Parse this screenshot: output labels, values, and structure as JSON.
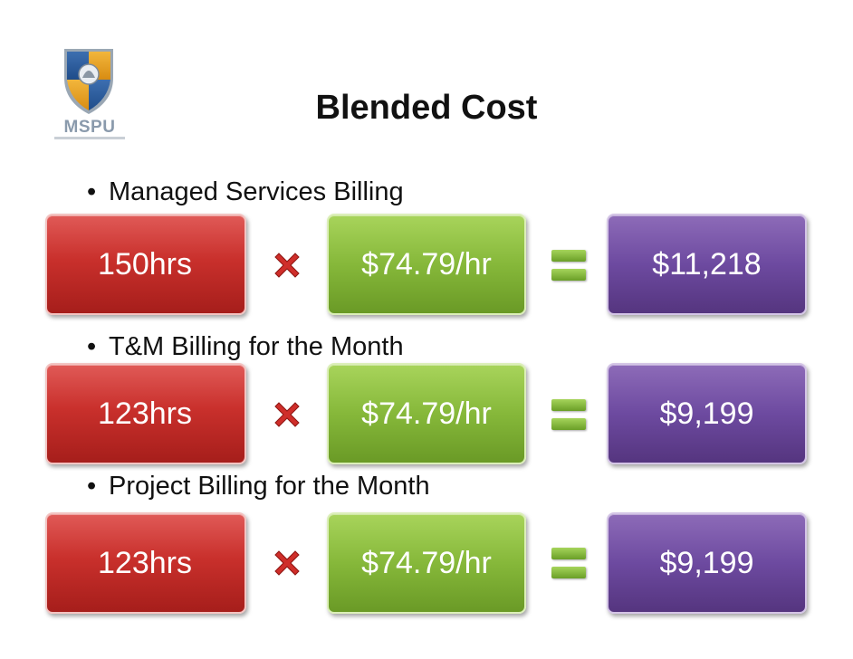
{
  "logo": {
    "text": "MSPU"
  },
  "title": "Blended Cost",
  "rows": [
    {
      "label": "Managed Services Billing",
      "hours": "150hrs",
      "rate": "$74.79/hr",
      "total": "$11,218"
    },
    {
      "label": "T&M Billing for the Month",
      "hours": "123hrs",
      "rate": "$74.79/hr",
      "total": "$9,199"
    },
    {
      "label": "Project Billing for the Month",
      "hours": "123hrs",
      "rate": "$74.79/hr",
      "total": "$9,199"
    }
  ],
  "colors": {
    "hours": "#c9302c",
    "rate": "#86b83a",
    "total": "#6d4aa0"
  },
  "icons": {
    "multiply": "multiply-icon",
    "equals": "equals-icon"
  }
}
